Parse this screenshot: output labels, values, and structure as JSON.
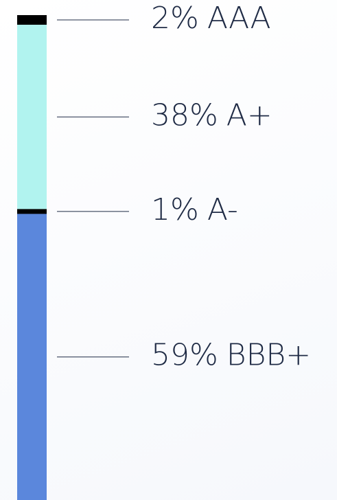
{
  "chart_data": {
    "type": "bar",
    "stacked": true,
    "categories": [
      "AAA",
      "A+",
      "A-",
      "BBB+"
    ],
    "values": [
      2,
      38,
      1,
      59
    ],
    "value_labels": [
      "2%",
      "38%",
      "1%",
      "59%"
    ],
    "colors": [
      "#000000",
      "#b1f3ef",
      "#000000",
      "#5b87dc"
    ]
  }
}
